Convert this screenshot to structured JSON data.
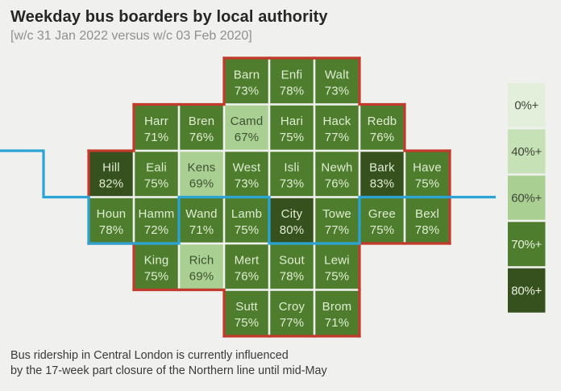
{
  "title": "Weekday bus boarders by local authority",
  "subtitle": "[w/c 31 Jan 2022 versus w/c 03 Feb 2020]",
  "footnote": {
    "line1": "Bus ridership in Central London is currently influenced",
    "line2": "by the 17-week part closure of the Northern line until mid-May"
  },
  "colors": {
    "background": "#f0f1ee",
    "outline_red": "#c23a2b",
    "thames_blue": "#2ba4d5",
    "tile_text_light": "#e0ecd4",
    "tile_text_dark": "#3d5330",
    "title_text": "#262626",
    "subtitle_text": "#8f8f8f",
    "footnote_text": "#3a3a3a",
    "legend_text_dark": "#3f4639",
    "legend_text_light": "#e9f1df"
  },
  "chart_data": {
    "type": "tile-map",
    "title": "Weekday bus boarders by local authority",
    "comparison": "w/c 31 Jan 2022 versus w/c 03 Feb 2020",
    "value_unit": "%",
    "legend": [
      {
        "label": "0%+",
        "threshold": 0,
        "color": "#e3efdb",
        "text": "dark"
      },
      {
        "label": "40%+",
        "threshold": 40,
        "color": "#c7e1b6",
        "text": "dark"
      },
      {
        "label": "60%+",
        "threshold": 60,
        "color": "#a9d092",
        "text": "dark"
      },
      {
        "label": "70%+",
        "threshold": 70,
        "color": "#4e7e2d",
        "text": "light"
      },
      {
        "label": "80%+",
        "threshold": 80,
        "color": "#36511d",
        "text": "light"
      }
    ],
    "tiles": [
      {
        "name": "Barn",
        "value": 73,
        "col": 4,
        "row": 1
      },
      {
        "name": "Enfi",
        "value": 78,
        "col": 5,
        "row": 1
      },
      {
        "name": "Walt",
        "value": 73,
        "col": 6,
        "row": 1
      },
      {
        "name": "Harr",
        "value": 71,
        "col": 2,
        "row": 2
      },
      {
        "name": "Bren",
        "value": 76,
        "col": 3,
        "row": 2
      },
      {
        "name": "Camd",
        "value": 67,
        "col": 4,
        "row": 2
      },
      {
        "name": "Hari",
        "value": 75,
        "col": 5,
        "row": 2
      },
      {
        "name": "Hack",
        "value": 77,
        "col": 6,
        "row": 2
      },
      {
        "name": "Redb",
        "value": 76,
        "col": 7,
        "row": 2
      },
      {
        "name": "Hill",
        "value": 82,
        "col": 1,
        "row": 3
      },
      {
        "name": "Eali",
        "value": 75,
        "col": 2,
        "row": 3
      },
      {
        "name": "Kens",
        "value": 69,
        "col": 3,
        "row": 3
      },
      {
        "name": "West",
        "value": 73,
        "col": 4,
        "row": 3
      },
      {
        "name": "Isli",
        "value": 73,
        "col": 5,
        "row": 3
      },
      {
        "name": "Newh",
        "value": 76,
        "col": 6,
        "row": 3
      },
      {
        "name": "Bark",
        "value": 83,
        "col": 7,
        "row": 3
      },
      {
        "name": "Have",
        "value": 75,
        "col": 8,
        "row": 3
      },
      {
        "name": "Houn",
        "value": 78,
        "col": 1,
        "row": 4
      },
      {
        "name": "Hamm",
        "value": 72,
        "col": 2,
        "row": 4
      },
      {
        "name": "Wand",
        "value": 71,
        "col": 3,
        "row": 4
      },
      {
        "name": "Lamb",
        "value": 75,
        "col": 4,
        "row": 4
      },
      {
        "name": "City",
        "value": 80,
        "col": 5,
        "row": 4
      },
      {
        "name": "Towe",
        "value": 77,
        "col": 6,
        "row": 4
      },
      {
        "name": "Gree",
        "value": 75,
        "col": 7,
        "row": 4
      },
      {
        "name": "Bexl",
        "value": 78,
        "col": 8,
        "row": 4
      },
      {
        "name": "King",
        "value": 75,
        "col": 2,
        "row": 5
      },
      {
        "name": "Rich",
        "value": 69,
        "col": 3,
        "row": 5
      },
      {
        "name": "Mert",
        "value": 76,
        "col": 4,
        "row": 5
      },
      {
        "name": "Sout",
        "value": 78,
        "col": 5,
        "row": 5
      },
      {
        "name": "Lewi",
        "value": 75,
        "col": 6,
        "row": 5
      },
      {
        "name": "Sutt",
        "value": 75,
        "col": 4,
        "row": 6
      },
      {
        "name": "Croy",
        "value": 77,
        "col": 5,
        "row": 6
      },
      {
        "name": "Brom",
        "value": 71,
        "col": 6,
        "row": 6
      }
    ],
    "thames_grid_points": [
      [
        -2,
        2
      ],
      [
        -1,
        2
      ],
      [
        -1,
        3
      ],
      [
        0,
        3
      ],
      [
        0,
        4
      ],
      [
        2,
        4
      ],
      [
        2,
        3
      ],
      [
        4,
        3
      ],
      [
        4,
        4
      ],
      [
        6,
        4
      ],
      [
        6,
        3
      ],
      [
        9.02,
        3
      ]
    ]
  }
}
